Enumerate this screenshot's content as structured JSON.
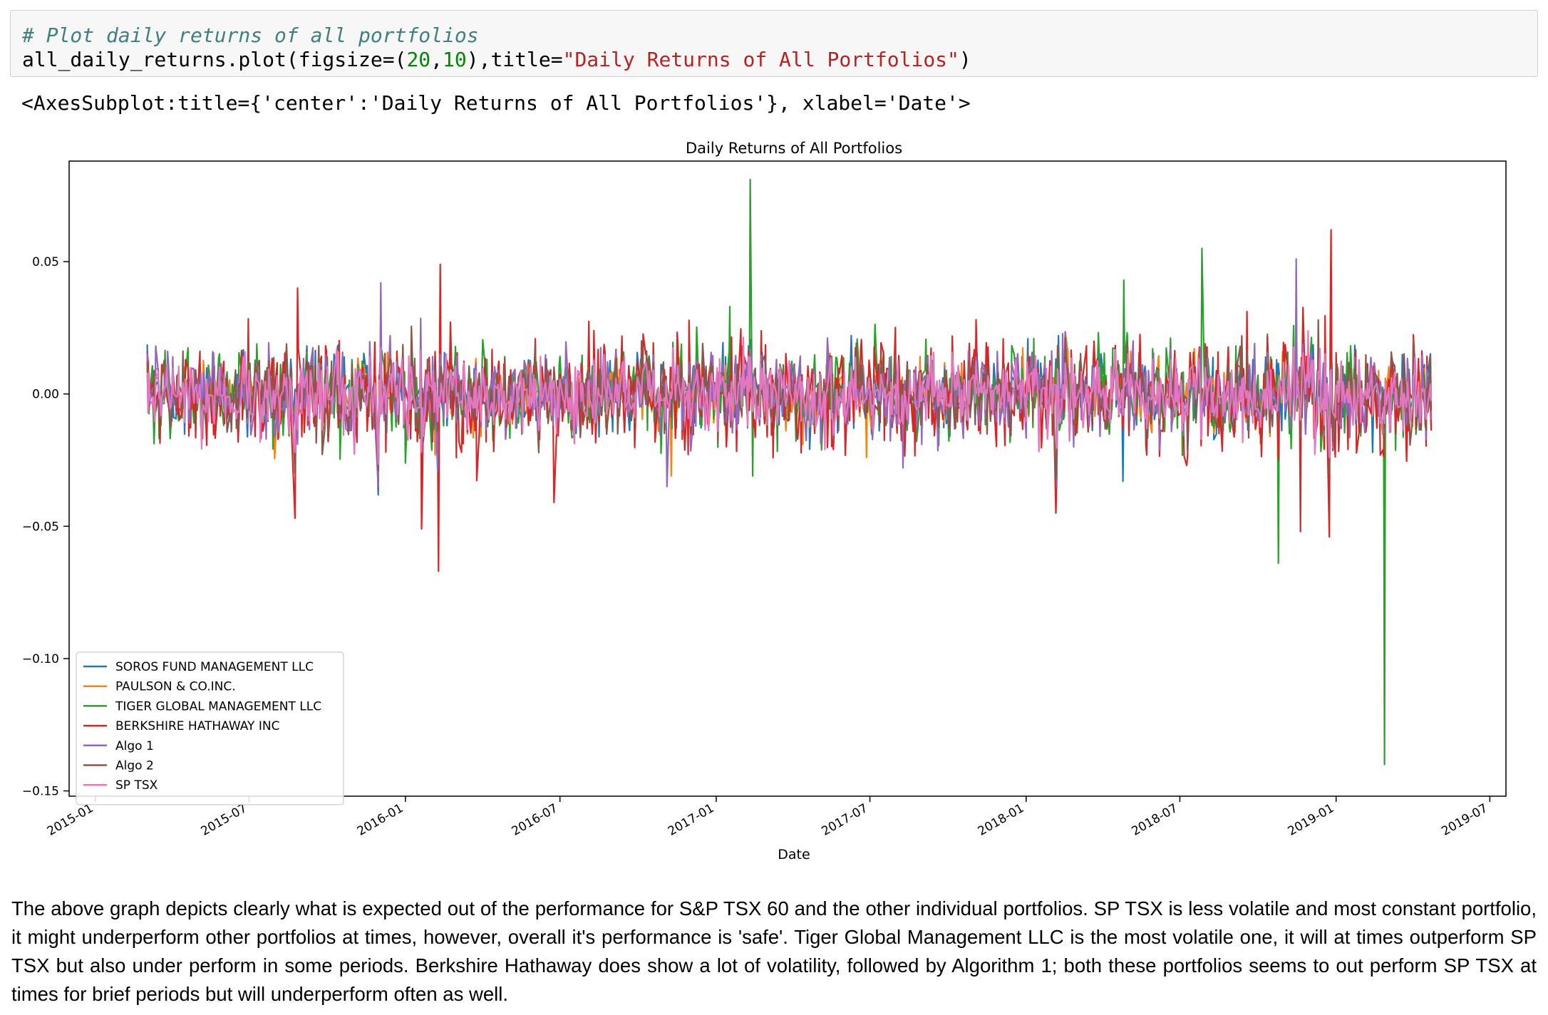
{
  "code_cell": {
    "comment": "# Plot daily returns of all portfolios",
    "code_prefix": "all_daily_returns.plot(figsize=(",
    "code_num1": "20",
    "code_comma": ",",
    "code_num2": "10",
    "code_mid": "),title=",
    "code_string": "\"Daily Returns of All Portfolios\"",
    "code_suffix": ")"
  },
  "output_repr": "<AxesSubplot:title={'center':'Daily Returns of All Portfolios'}, xlabel='Date'>",
  "chart_data": {
    "type": "line",
    "title": "Daily Returns of All Portfolios",
    "xlabel": "Date",
    "ylabel": "",
    "xlim": [
      "2014-12-01",
      "2019-07-20"
    ],
    "ylim": [
      -0.152,
      0.088
    ],
    "x_ticks": [
      "2015-01",
      "2015-07",
      "2016-01",
      "2016-07",
      "2017-01",
      "2017-07",
      "2018-01",
      "2018-07",
      "2019-01",
      "2019-07"
    ],
    "y_ticks": [
      0.05,
      0.0,
      -0.05,
      -0.1,
      -0.15
    ],
    "y_tick_labels": [
      "0.05",
      "0.00",
      "−0.05",
      "−0.10",
      "−0.15"
    ],
    "grid": false,
    "legend_position": "lower-left",
    "series": [
      {
        "name": "SOROS FUND MANAGEMENT LLC",
        "color": "#1f77b4",
        "volatility": 0.008,
        "spikes": [
          [
            "2018-04-25",
            -0.033
          ],
          [
            "2018-02-08",
            0.022
          ]
        ]
      },
      {
        "name": "PAULSON & CO.INC.",
        "color": "#ff7f0e",
        "volatility": 0.007,
        "spikes": [
          [
            "2016-02-05",
            -0.023
          ],
          [
            "2016-11-09",
            -0.031
          ],
          [
            "2017-06-27",
            -0.024
          ]
        ]
      },
      {
        "name": "TIGER GLOBAL MANAGEMENT LLC",
        "color": "#2ca02c",
        "volatility": 0.01,
        "spikes": [
          [
            "2017-02-10",
            0.081
          ],
          [
            "2017-02-13",
            -0.031
          ],
          [
            "2018-04-26",
            0.043
          ],
          [
            "2018-07-27",
            0.055
          ],
          [
            "2018-10-25",
            -0.064
          ],
          [
            "2019-02-27",
            -0.14
          ],
          [
            "2017-01-17",
            0.033
          ]
        ]
      },
      {
        "name": "BERKSHIRE HATHAWAY INC",
        "color": "#d62728",
        "volatility": 0.013,
        "spikes": [
          [
            "2016-02-11",
            0.049
          ],
          [
            "2016-02-09",
            -0.067
          ],
          [
            "2015-08-24",
            -0.047
          ],
          [
            "2015-08-27",
            0.04
          ],
          [
            "2016-01-20",
            -0.051
          ],
          [
            "2018-02-05",
            -0.045
          ],
          [
            "2018-12-24",
            -0.054
          ],
          [
            "2018-12-26",
            0.062
          ],
          [
            "2018-11-20",
            -0.052
          ],
          [
            "2016-06-24",
            -0.041
          ]
        ]
      },
      {
        "name": "Algo 1",
        "color": "#9467bd",
        "volatility": 0.009,
        "spikes": [
          [
            "2015-12-03",
            0.042
          ],
          [
            "2016-11-04",
            -0.035
          ],
          [
            "2018-11-15",
            0.051
          ]
        ]
      },
      {
        "name": "Algo 2",
        "color": "#8c564b",
        "volatility": 0.008,
        "spikes": [
          [
            "2015-08-24",
            -0.03
          ],
          [
            "2018-02-05",
            -0.032
          ],
          [
            "2018-12-24",
            -0.03
          ]
        ]
      },
      {
        "name": "SP TSX",
        "color": "#e377c2",
        "volatility": 0.007,
        "spikes": [
          [
            "2015-08-24",
            -0.022
          ],
          [
            "2016-01-20",
            -0.022
          ],
          [
            "2018-12-24",
            -0.024
          ]
        ]
      }
    ],
    "date_start": "2015-03-03",
    "date_end": "2019-04-23"
  },
  "description": "The above graph depicts clearly what is expected out of the performance for S&P TSX 60 and the other individual portfolios. SP TSX is less volatile and most constant portfolio, it might underperform other portfolios at times, however, overall it's performance is 'safe'. Tiger Global Management LLC is the most volatile one, it will at times outperform SP TSX but also under perform in some periods. Berkshire Hathaway does show a lot of volatility, followed by Algorithm 1; both these portfolios seems to out perform SP TSX at times for brief periods but will underperform often as well."
}
